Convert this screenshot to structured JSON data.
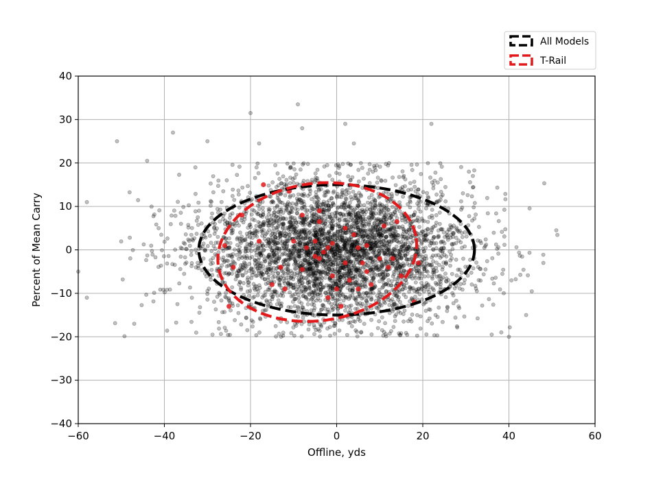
{
  "chart_data": {
    "type": "scatter",
    "xlabel": "Offline, yds",
    "ylabel": "Percent of Mean Carry",
    "xlim": [
      -60,
      60
    ],
    "ylim": [
      -40,
      40
    ],
    "xticks": [
      "−60",
      "−40",
      "−20",
      "0",
      "20",
      "40",
      "60"
    ],
    "xtick_values": [
      -60,
      -40,
      -20,
      0,
      20,
      40,
      60
    ],
    "yticks": [
      "−40",
      "−30",
      "−20",
      "−10",
      "0",
      "10",
      "20",
      "30",
      "40"
    ],
    "ytick_values": [
      -40,
      -30,
      -20,
      -10,
      0,
      10,
      20,
      30,
      40
    ],
    "grid": true,
    "legend_position": "top-right",
    "colors": {
      "all_points": "#000000",
      "trail_points": "#e31a1c",
      "all_ellipse": "#000000",
      "trail_ellipse": "#e31a1c",
      "grid": "#b0b0b0"
    },
    "series": [
      {
        "name": "All Models",
        "kind": "ellipse",
        "center": [
          0,
          0
        ],
        "semi_axis_x": 32,
        "semi_axis_y": 15,
        "rotation_deg": 0
      },
      {
        "name": "T-Rail",
        "kind": "ellipse",
        "center": [
          -4.5,
          -0.5
        ],
        "semi_axis_x": 23.2,
        "semi_axis_y": 15.8,
        "rotation_deg": -8
      }
    ],
    "scatter_all": {
      "approx_count": 4000,
      "x_mean": 0,
      "x_sd": 16,
      "y_mean": 0,
      "y_sd": 8,
      "y_clip": [
        -20,
        20
      ],
      "outliers": [
        [
          -51,
          25
        ],
        [
          -44,
          20.5
        ],
        [
          -38,
          27
        ],
        [
          -20,
          31.5
        ],
        [
          -9,
          33.5
        ],
        [
          2,
          29
        ],
        [
          -18,
          24.5
        ],
        [
          -8,
          28
        ],
        [
          -58,
          11
        ],
        [
          -60,
          -5
        ],
        [
          -58,
          -11
        ],
        [
          51,
          4.5
        ],
        [
          48,
          -3
        ],
        [
          44,
          -15
        ],
        [
          40,
          -20
        ],
        [
          -47,
          -17
        ],
        [
          22,
          29
        ],
        [
          4,
          24.5
        ],
        [
          -30,
          25
        ],
        [
          36,
          -19.5
        ]
      ]
    },
    "scatter_trail": {
      "points": [
        [
          -17,
          15
        ],
        [
          -22,
          8
        ],
        [
          -26,
          1
        ],
        [
          -24,
          -4
        ],
        [
          -25,
          -13
        ],
        [
          -11,
          13.5
        ],
        [
          -8,
          8
        ],
        [
          -4,
          9
        ],
        [
          -4,
          6.5
        ],
        [
          -10,
          2
        ],
        [
          -7,
          0.5
        ],
        [
          -5,
          -1.5
        ],
        [
          -3,
          -0.5
        ],
        [
          -4,
          -2
        ],
        [
          -2,
          0.5
        ],
        [
          -1,
          1.5
        ],
        [
          2,
          -3
        ],
        [
          4,
          3.5
        ],
        [
          5,
          0.5
        ],
        [
          6,
          -3
        ],
        [
          7,
          -5
        ],
        [
          5,
          -9
        ],
        [
          3,
          -7
        ],
        [
          8,
          -8
        ],
        [
          11,
          5.5
        ],
        [
          14,
          6.5
        ],
        [
          13,
          -2
        ],
        [
          15,
          -6
        ],
        [
          18,
          -12
        ],
        [
          19,
          -3
        ],
        [
          12,
          -4
        ],
        [
          -8,
          -4.5
        ],
        [
          -12,
          -9
        ],
        [
          -15,
          -8
        ],
        [
          -2,
          -11
        ],
        [
          1,
          -13
        ],
        [
          -5,
          2
        ],
        [
          10,
          -2
        ],
        [
          -13,
          -4
        ],
        [
          -18,
          2
        ],
        [
          0,
          -9
        ],
        [
          7,
          1
        ],
        [
          2,
          5
        ],
        [
          -1,
          -6
        ]
      ]
    }
  },
  "legend": {
    "all_models_label": "All Models",
    "trail_label": "T-Rail"
  }
}
